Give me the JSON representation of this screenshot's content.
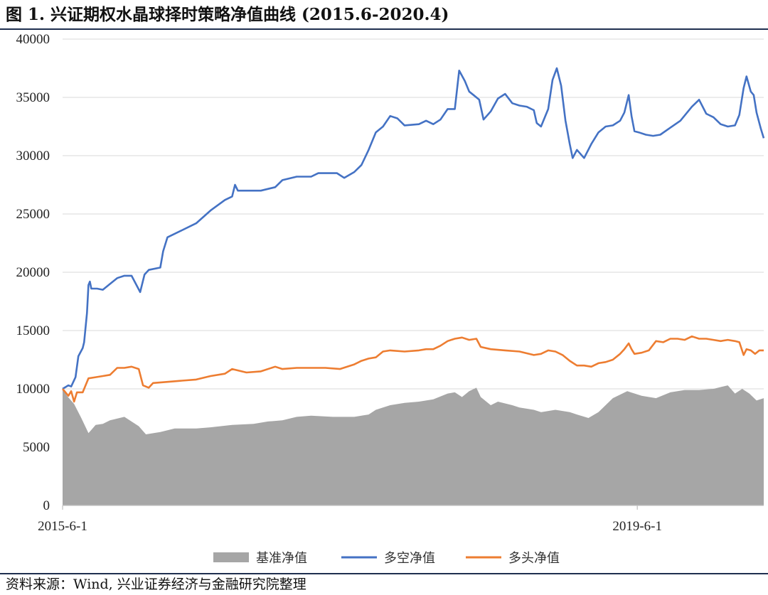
{
  "title": "图 1. 兴证期权水晶球择时策略净值曲线 (2015.6-2020.4)",
  "source": "资料来源：Wind, 兴业证券经济与金融研究院整理",
  "chart_data": {
    "type": "line",
    "title": "图 1. 兴证期权水晶球择时策略净值曲线 (2015.6-2020.4)",
    "xlabel": "",
    "ylabel": "",
    "ylim": [
      0,
      40000
    ],
    "yticks": [
      0,
      5000,
      10000,
      15000,
      20000,
      25000,
      30000,
      35000,
      40000
    ],
    "ytick_labels": [
      "0",
      "5000",
      "10000",
      "15000",
      "20000",
      "25000",
      "30000",
      "35000",
      "40000"
    ],
    "xticks": [
      {
        "x": 2015.42,
        "label": "2015-6-1"
      },
      {
        "x": 2019.42,
        "label": "2019-6-1"
      }
    ],
    "xlim": [
      2015.42,
      2020.3
    ],
    "grid": "horizontal",
    "legend": "bottom",
    "series": [
      {
        "name": "基准净值",
        "kind": "area",
        "color": "#a6a6a6",
        "points": [
          [
            2015.42,
            10000
          ],
          [
            2015.45,
            9400
          ],
          [
            2015.5,
            8700
          ],
          [
            2015.55,
            7500
          ],
          [
            2015.6,
            6200
          ],
          [
            2015.65,
            6900
          ],
          [
            2015.7,
            7000
          ],
          [
            2015.75,
            7300
          ],
          [
            2015.85,
            7600
          ],
          [
            2015.95,
            6800
          ],
          [
            2016.0,
            6100
          ],
          [
            2016.1,
            6300
          ],
          [
            2016.2,
            6600
          ],
          [
            2016.35,
            6600
          ],
          [
            2016.45,
            6700
          ],
          [
            2016.6,
            6900
          ],
          [
            2016.75,
            7000
          ],
          [
            2016.85,
            7200
          ],
          [
            2016.95,
            7300
          ],
          [
            2017.05,
            7600
          ],
          [
            2017.15,
            7700
          ],
          [
            2017.3,
            7600
          ],
          [
            2017.45,
            7600
          ],
          [
            2017.55,
            7800
          ],
          [
            2017.6,
            8200
          ],
          [
            2017.7,
            8600
          ],
          [
            2017.8,
            8800
          ],
          [
            2017.9,
            8900
          ],
          [
            2018.0,
            9100
          ],
          [
            2018.1,
            9600
          ],
          [
            2018.15,
            9700
          ],
          [
            2018.2,
            9300
          ],
          [
            2018.25,
            9800
          ],
          [
            2018.3,
            10100
          ],
          [
            2018.33,
            9300
          ],
          [
            2018.4,
            8600
          ],
          [
            2018.45,
            8900
          ],
          [
            2018.55,
            8600
          ],
          [
            2018.6,
            8400
          ],
          [
            2018.7,
            8200
          ],
          [
            2018.75,
            8000
          ],
          [
            2018.85,
            8200
          ],
          [
            2018.95,
            8000
          ],
          [
            2019.0,
            7800
          ],
          [
            2019.08,
            7500
          ],
          [
            2019.15,
            8000
          ],
          [
            2019.25,
            9200
          ],
          [
            2019.35,
            9800
          ],
          [
            2019.45,
            9400
          ],
          [
            2019.55,
            9200
          ],
          [
            2019.65,
            9700
          ],
          [
            2019.75,
            9900
          ],
          [
            2019.85,
            9900
          ],
          [
            2019.95,
            10000
          ],
          [
            2020.05,
            10300
          ],
          [
            2020.1,
            9600
          ],
          [
            2020.15,
            10000
          ],
          [
            2020.2,
            9600
          ],
          [
            2020.25,
            9000
          ],
          [
            2020.3,
            9200
          ]
        ]
      },
      {
        "name": "多空净值",
        "kind": "line",
        "color": "#4472c4",
        "points": [
          [
            2015.42,
            10000
          ],
          [
            2015.46,
            10300
          ],
          [
            2015.48,
            10200
          ],
          [
            2015.51,
            11000
          ],
          [
            2015.53,
            12800
          ],
          [
            2015.56,
            13500
          ],
          [
            2015.57,
            14000
          ],
          [
            2015.59,
            16500
          ],
          [
            2015.6,
            18900
          ],
          [
            2015.61,
            19200
          ],
          [
            2015.62,
            18600
          ],
          [
            2015.66,
            18600
          ],
          [
            2015.7,
            18500
          ],
          [
            2015.75,
            19000
          ],
          [
            2015.8,
            19500
          ],
          [
            2015.85,
            19700
          ],
          [
            2015.9,
            19700
          ],
          [
            2015.96,
            18300
          ],
          [
            2015.99,
            19800
          ],
          [
            2016.02,
            20200
          ],
          [
            2016.1,
            20400
          ],
          [
            2016.12,
            21800
          ],
          [
            2016.15,
            23000
          ],
          [
            2016.25,
            23600
          ],
          [
            2016.35,
            24200
          ],
          [
            2016.45,
            25300
          ],
          [
            2016.55,
            26200
          ],
          [
            2016.6,
            26500
          ],
          [
            2016.62,
            27500
          ],
          [
            2016.64,
            27000
          ],
          [
            2016.7,
            27000
          ],
          [
            2016.8,
            27000
          ],
          [
            2016.9,
            27300
          ],
          [
            2016.95,
            27900
          ],
          [
            2017.05,
            28200
          ],
          [
            2017.15,
            28200
          ],
          [
            2017.2,
            28500
          ],
          [
            2017.28,
            28500
          ],
          [
            2017.33,
            28500
          ],
          [
            2017.38,
            28100
          ],
          [
            2017.45,
            28600
          ],
          [
            2017.5,
            29200
          ],
          [
            2017.55,
            30500
          ],
          [
            2017.6,
            32000
          ],
          [
            2017.65,
            32500
          ],
          [
            2017.7,
            33400
          ],
          [
            2017.75,
            33200
          ],
          [
            2017.8,
            32600
          ],
          [
            2017.9,
            32700
          ],
          [
            2017.95,
            33000
          ],
          [
            2018.0,
            32700
          ],
          [
            2018.05,
            33100
          ],
          [
            2018.1,
            34000
          ],
          [
            2018.15,
            34000
          ],
          [
            2018.18,
            37300
          ],
          [
            2018.22,
            36400
          ],
          [
            2018.25,
            35500
          ],
          [
            2018.28,
            35200
          ],
          [
            2018.32,
            34800
          ],
          [
            2018.35,
            33100
          ],
          [
            2018.4,
            33800
          ],
          [
            2018.45,
            34900
          ],
          [
            2018.5,
            35300
          ],
          [
            2018.55,
            34500
          ],
          [
            2018.6,
            34300
          ],
          [
            2018.65,
            34200
          ],
          [
            2018.7,
            33900
          ],
          [
            2018.72,
            32800
          ],
          [
            2018.75,
            32500
          ],
          [
            2018.8,
            34000
          ],
          [
            2018.83,
            36500
          ],
          [
            2018.86,
            37500
          ],
          [
            2018.89,
            36000
          ],
          [
            2018.92,
            33000
          ],
          [
            2018.95,
            31000
          ],
          [
            2018.97,
            29800
          ],
          [
            2019.0,
            30500
          ],
          [
            2019.05,
            29800
          ],
          [
            2019.1,
            31000
          ],
          [
            2019.15,
            32000
          ],
          [
            2019.2,
            32500
          ],
          [
            2019.25,
            32600
          ],
          [
            2019.3,
            33000
          ],
          [
            2019.33,
            33700
          ],
          [
            2019.36,
            35200
          ],
          [
            2019.38,
            33400
          ],
          [
            2019.4,
            32100
          ],
          [
            2019.43,
            32000
          ],
          [
            2019.48,
            31800
          ],
          [
            2019.53,
            31700
          ],
          [
            2019.58,
            31800
          ],
          [
            2019.65,
            32400
          ],
          [
            2019.72,
            33000
          ],
          [
            2019.8,
            34200
          ],
          [
            2019.85,
            34800
          ],
          [
            2019.9,
            33600
          ],
          [
            2019.95,
            33300
          ],
          [
            2020.0,
            32700
          ],
          [
            2020.05,
            32500
          ],
          [
            2020.1,
            32600
          ],
          [
            2020.13,
            33500
          ],
          [
            2020.16,
            35800
          ],
          [
            2020.18,
            36800
          ],
          [
            2020.21,
            35500
          ],
          [
            2020.23,
            35200
          ],
          [
            2020.25,
            33700
          ],
          [
            2020.28,
            32300
          ],
          [
            2020.3,
            31500
          ]
        ]
      },
      {
        "name": "多头净值",
        "kind": "line",
        "color": "#ed7d31",
        "points": [
          [
            2015.42,
            10000
          ],
          [
            2015.46,
            9400
          ],
          [
            2015.48,
            9800
          ],
          [
            2015.5,
            8900
          ],
          [
            2015.52,
            9700
          ],
          [
            2015.56,
            9700
          ],
          [
            2015.6,
            10900
          ],
          [
            2015.65,
            11000
          ],
          [
            2015.7,
            11100
          ],
          [
            2015.75,
            11200
          ],
          [
            2015.8,
            11800
          ],
          [
            2015.85,
            11800
          ],
          [
            2015.9,
            11900
          ],
          [
            2015.95,
            11700
          ],
          [
            2015.98,
            10300
          ],
          [
            2016.02,
            10100
          ],
          [
            2016.05,
            10500
          ],
          [
            2016.15,
            10600
          ],
          [
            2016.25,
            10700
          ],
          [
            2016.35,
            10800
          ],
          [
            2016.45,
            11100
          ],
          [
            2016.55,
            11300
          ],
          [
            2016.6,
            11700
          ],
          [
            2016.7,
            11400
          ],
          [
            2016.8,
            11500
          ],
          [
            2016.9,
            11900
          ],
          [
            2016.95,
            11700
          ],
          [
            2017.05,
            11800
          ],
          [
            2017.15,
            11800
          ],
          [
            2017.25,
            11800
          ],
          [
            2017.35,
            11700
          ],
          [
            2017.45,
            12100
          ],
          [
            2017.5,
            12400
          ],
          [
            2017.55,
            12600
          ],
          [
            2017.6,
            12700
          ],
          [
            2017.65,
            13200
          ],
          [
            2017.7,
            13300
          ],
          [
            2017.8,
            13200
          ],
          [
            2017.9,
            13300
          ],
          [
            2017.95,
            13400
          ],
          [
            2018.0,
            13400
          ],
          [
            2018.05,
            13700
          ],
          [
            2018.1,
            14100
          ],
          [
            2018.15,
            14300
          ],
          [
            2018.2,
            14400
          ],
          [
            2018.25,
            14200
          ],
          [
            2018.3,
            14300
          ],
          [
            2018.33,
            13600
          ],
          [
            2018.4,
            13400
          ],
          [
            2018.5,
            13300
          ],
          [
            2018.6,
            13200
          ],
          [
            2018.7,
            12900
          ],
          [
            2018.75,
            13000
          ],
          [
            2018.8,
            13300
          ],
          [
            2018.85,
            13200
          ],
          [
            2018.9,
            12900
          ],
          [
            2018.95,
            12400
          ],
          [
            2019.0,
            12000
          ],
          [
            2019.05,
            12000
          ],
          [
            2019.1,
            11900
          ],
          [
            2019.15,
            12200
          ],
          [
            2019.2,
            12300
          ],
          [
            2019.25,
            12500
          ],
          [
            2019.3,
            13000
          ],
          [
            2019.33,
            13400
          ],
          [
            2019.36,
            13900
          ],
          [
            2019.38,
            13400
          ],
          [
            2019.4,
            13000
          ],
          [
            2019.45,
            13100
          ],
          [
            2019.5,
            13300
          ],
          [
            2019.55,
            14100
          ],
          [
            2019.6,
            14000
          ],
          [
            2019.65,
            14300
          ],
          [
            2019.7,
            14300
          ],
          [
            2019.75,
            14200
          ],
          [
            2019.8,
            14500
          ],
          [
            2019.85,
            14300
          ],
          [
            2019.9,
            14300
          ],
          [
            2019.95,
            14200
          ],
          [
            2020.0,
            14100
          ],
          [
            2020.05,
            14200
          ],
          [
            2020.1,
            14100
          ],
          [
            2020.13,
            14000
          ],
          [
            2020.16,
            12900
          ],
          [
            2020.18,
            13400
          ],
          [
            2020.21,
            13300
          ],
          [
            2020.24,
            13000
          ],
          [
            2020.27,
            13300
          ],
          [
            2020.3,
            13300
          ]
        ]
      }
    ]
  }
}
